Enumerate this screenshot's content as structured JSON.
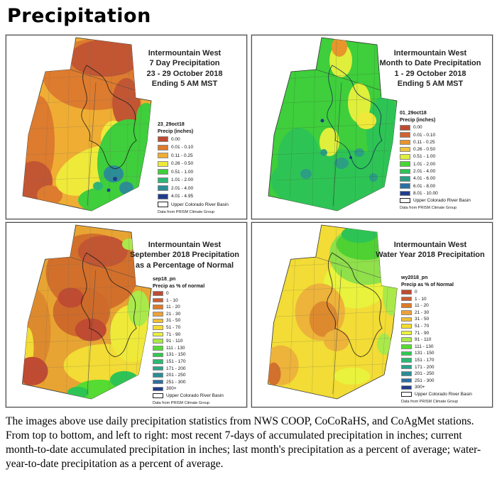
{
  "page_title": "Precipitation",
  "caption": "The images above use daily precipitation statistics from NWS COOP, CoCoRaHS, and CoAgMet stations. From top to bottom, and left to right: most recent 7-days of accumulated precipitation in inches; current month-to-date accumulated precipitation in inches; last month's precipitation as a percent of average; water-year-to-date precipitation as a percent of average.",
  "panels": [
    {
      "name": "7-day-precipitation",
      "title_lines": [
        "Intermountain West",
        "7 Day Precipitation",
        "23 - 29 October 2018",
        "Ending 5 AM MST"
      ],
      "legend": {
        "layer_name": "23_29oct18",
        "units_label": "Precip (inches)",
        "entries": [
          {
            "label": "0.00",
            "color": "#BE4A31"
          },
          {
            "label": "0.01 - 0.10",
            "color": "#DD7B2E"
          },
          {
            "label": "0.11 - 0.25",
            "color": "#EFAD33"
          },
          {
            "label": "0.26 - 0.50",
            "color": "#EFE93A"
          },
          {
            "label": "0.51 - 1.00",
            "color": "#3FCE3C"
          },
          {
            "label": "1.01 - 2.00",
            "color": "#2EB576"
          },
          {
            "label": "2.01 - 4.00",
            "color": "#2B8D95"
          },
          {
            "label": "4.01 - 4.95",
            "color": "#1F3D8C"
          }
        ],
        "basin_label": "Upper Colorado River Basin",
        "source": "Data from PRISM Climate Group"
      }
    },
    {
      "name": "month-to-date-precipitation",
      "title_lines": [
        "Intermountain West",
        "Month to Date Precipitation",
        "1 - 29 October 2018",
        "Ending 5 AM MST"
      ],
      "legend": {
        "layer_name": "01_29oct18",
        "units_label": "Precip (inches)",
        "entries": [
          {
            "label": "0.00",
            "color": "#BE4A31"
          },
          {
            "label": "0.01 - 0.10",
            "color": "#D2622E"
          },
          {
            "label": "0.11 - 0.25",
            "color": "#E8962C"
          },
          {
            "label": "0.26 - 0.50",
            "color": "#F0C33C"
          },
          {
            "label": "0.51 - 1.00",
            "color": "#E0EF3B"
          },
          {
            "label": "1.01 - 2.00",
            "color": "#49D635"
          },
          {
            "label": "2.01 - 4.00",
            "color": "#2EC455"
          },
          {
            "label": "4.01 - 6.00",
            "color": "#2B9E84"
          },
          {
            "label": "6.01 - 8.00",
            "color": "#2B6FA3"
          },
          {
            "label": "8.01 - 10.00",
            "color": "#1F3D8C"
          }
        ],
        "basin_label": "Upper Colorado River Basin",
        "source": "Data from PRISM Climate Group"
      }
    },
    {
      "name": "september-2018-percent-of-normal",
      "title_lines": [
        "Intermountain West",
        "September 2018 Precipitation",
        "as a Percentage of Normal"
      ],
      "legend": {
        "layer_name": "sep18_pn",
        "units_label": "Precip as % of normal",
        "entries": [
          {
            "label": "0",
            "color": "#BE4A31"
          },
          {
            "label": "1 - 10",
            "color": "#CC5C30"
          },
          {
            "label": "11 - 20",
            "color": "#DD7A28"
          },
          {
            "label": "21 - 30",
            "color": "#EDA03A"
          },
          {
            "label": "31 - 50",
            "color": "#F0BE35"
          },
          {
            "label": "51 - 70",
            "color": "#F4DC30"
          },
          {
            "label": "71 - 90",
            "color": "#E9F23C"
          },
          {
            "label": "91 - 110",
            "color": "#AAE94A"
          },
          {
            "label": "111 - 130",
            "color": "#55DB31"
          },
          {
            "label": "131 - 150",
            "color": "#2ECC4E"
          },
          {
            "label": "151 - 170",
            "color": "#2BBA70"
          },
          {
            "label": "171 - 200",
            "color": "#2BA388"
          },
          {
            "label": "201 - 250",
            "color": "#2B8D95"
          },
          {
            "label": "251 - 300",
            "color": "#2B6FA3"
          },
          {
            "label": "300+",
            "color": "#1F3D8C"
          }
        ],
        "basin_label": "Upper Colorado River Basin",
        "source": "Data from PRISM Climate Group"
      }
    },
    {
      "name": "water-year-2018-percent-of-normal",
      "title_lines": [
        "Intermountain West",
        "Water Year 2018 Precipitation"
      ],
      "legend": {
        "layer_name": "wy2018_pn",
        "units_label": "Precip as % of Normal",
        "entries": [
          {
            "label": "0",
            "color": "#BE4A31"
          },
          {
            "label": "1 - 10",
            "color": "#CC5C30"
          },
          {
            "label": "11 - 20",
            "color": "#DD7A28"
          },
          {
            "label": "21 - 30",
            "color": "#EDA03A"
          },
          {
            "label": "31 - 50",
            "color": "#F0BE35"
          },
          {
            "label": "51 - 70",
            "color": "#F4DC30"
          },
          {
            "label": "71 - 90",
            "color": "#E9F23C"
          },
          {
            "label": "91 - 110",
            "color": "#AAE94A"
          },
          {
            "label": "111 - 130",
            "color": "#55DB31"
          },
          {
            "label": "131 - 150",
            "color": "#2ECC4E"
          },
          {
            "label": "151 - 170",
            "color": "#2BBA70"
          },
          {
            "label": "171 - 200",
            "color": "#2BA388"
          },
          {
            "label": "201 - 250",
            "color": "#2B8D95"
          },
          {
            "label": "251 - 300",
            "color": "#2B6FA3"
          },
          {
            "label": "300+",
            "color": "#1F3D8C"
          }
        ],
        "basin_label": "Upper Colorado River Basin",
        "source": "Data from PRISM Climate Group"
      }
    }
  ]
}
